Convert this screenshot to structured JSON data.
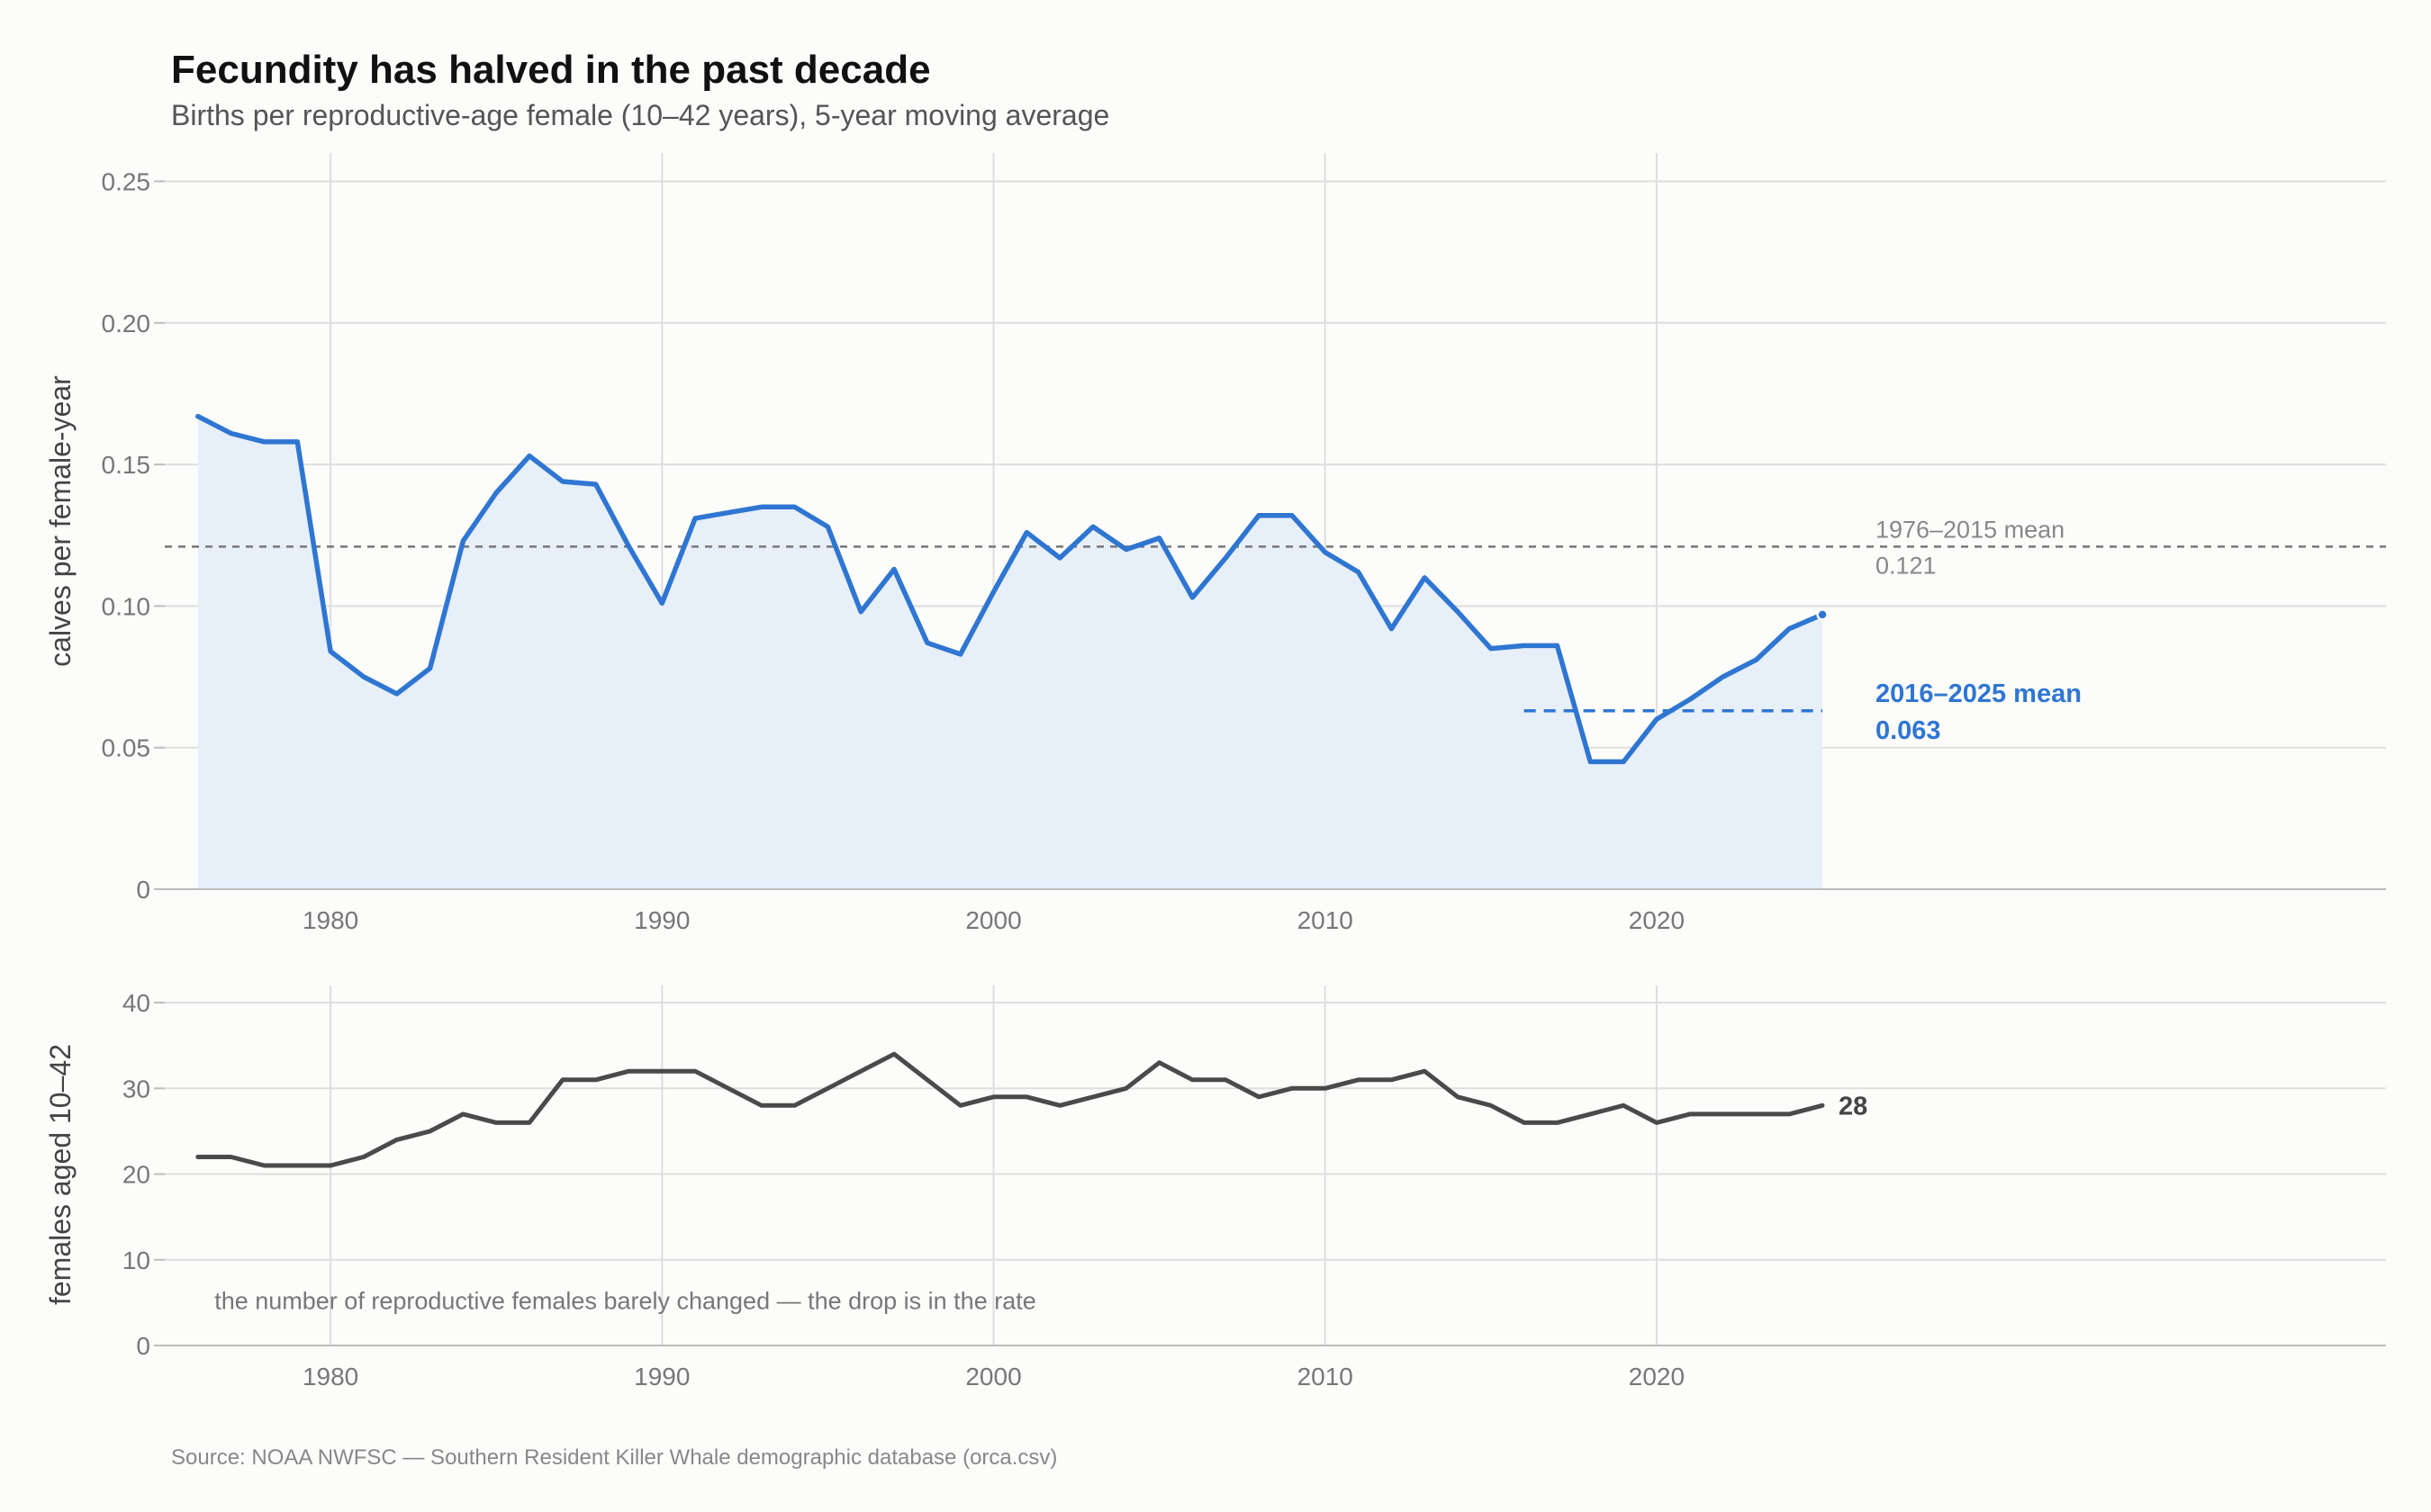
{
  "title": "Fecundity has halved in the past decade",
  "subtitle": "Births per reproductive-age female (10–42 years), 5-year moving average",
  "source": "Source: NOAA NWFSC — Southern Resident Killer Whale demographic database (orca.csv)",
  "colors": {
    "fecundity": "#2f76d2",
    "females": "#4a4a4a",
    "reference": "#777777"
  },
  "chart_data": [
    {
      "type": "area",
      "ylabel": "calves per female-year",
      "xlabel": "",
      "xlim": [
        1975,
        2042
      ],
      "ylim": [
        0,
        0.26
      ],
      "x_ticks": [
        1980,
        1990,
        2000,
        2010,
        2020
      ],
      "y_ticks": [
        0,
        0.05,
        0.1,
        0.15,
        0.2,
        0.25
      ],
      "y_tick_labels": [
        "0",
        "0.05",
        "0.10",
        "0.15",
        "0.20",
        "0.25"
      ],
      "grid": true,
      "series": [
        {
          "x": [
            1976,
            1977,
            1978,
            1979,
            1980,
            1981,
            1982,
            1983,
            1984,
            1985,
            1986,
            1987,
            1988,
            1989,
            1990,
            1991,
            1992,
            1993,
            1994,
            1995,
            1996,
            1997,
            1998,
            1999,
            2000,
            2001,
            2002,
            2003,
            2004,
            2005,
            2006,
            2007,
            2008,
            2009,
            2010,
            2011,
            2012,
            2013,
            2014,
            2015,
            2016,
            2017,
            2018,
            2019,
            2020,
            2021,
            2022,
            2023,
            2024,
            2025
          ],
          "values": [
            0.167,
            0.161,
            0.158,
            0.158,
            0.084,
            0.075,
            0.069,
            0.078,
            0.123,
            0.14,
            0.153,
            0.144,
            0.143,
            0.121,
            0.101,
            0.131,
            0.133,
            0.135,
            0.135,
            0.128,
            0.098,
            0.113,
            0.087,
            0.083,
            0.105,
            0.126,
            0.117,
            0.128,
            0.12,
            0.124,
            0.103,
            0.117,
            0.132,
            0.132,
            0.119,
            0.112,
            0.092,
            0.11,
            0.098,
            0.085,
            0.086,
            0.086,
            0.045,
            0.045,
            0.06,
            0.067,
            0.075,
            0.081,
            0.092,
            0.097
          ]
        }
      ],
      "reference_line": {
        "y": 0.121,
        "label": "1976–2015 mean",
        "value_label": "0.121"
      },
      "mean_segment": {
        "x": [
          2016,
          2025
        ],
        "y": 0.063,
        "label": "2016–2025 mean",
        "value_label": "0.063"
      }
    },
    {
      "type": "line",
      "ylabel": "females aged 10–42",
      "xlabel": "",
      "xlim": [
        1975,
        2042
      ],
      "ylim": [
        0,
        42
      ],
      "x_ticks": [
        1980,
        1990,
        2000,
        2010,
        2020
      ],
      "y_ticks": [
        0,
        10,
        20,
        30,
        40
      ],
      "y_tick_labels": [
        "0",
        "10",
        "20",
        "30",
        "40"
      ],
      "grid": true,
      "series": [
        {
          "x": [
            1976,
            1977,
            1978,
            1979,
            1980,
            1981,
            1982,
            1983,
            1984,
            1985,
            1986,
            1987,
            1988,
            1989,
            1990,
            1991,
            1992,
            1993,
            1994,
            1995,
            1996,
            1997,
            1998,
            1999,
            2000,
            2001,
            2002,
            2003,
            2004,
            2005,
            2006,
            2007,
            2008,
            2009,
            2010,
            2011,
            2012,
            2013,
            2014,
            2015,
            2016,
            2017,
            2018,
            2019,
            2020,
            2021,
            2022,
            2023,
            2024,
            2025
          ],
          "values": [
            22,
            22,
            21,
            21,
            21,
            22,
            24,
            25,
            27,
            26,
            26,
            31,
            31,
            32,
            32,
            32,
            30,
            28,
            28,
            30,
            32,
            34,
            31,
            28,
            29,
            29,
            28,
            29,
            30,
            33,
            31,
            31,
            29,
            30,
            30,
            31,
            31,
            32,
            29,
            28,
            26,
            26,
            27,
            28,
            26,
            27,
            27,
            27,
            27,
            28
          ]
        }
      ],
      "end_label": "28",
      "annotation": "the number of reproductive females barely changed — the drop is in the rate"
    }
  ]
}
